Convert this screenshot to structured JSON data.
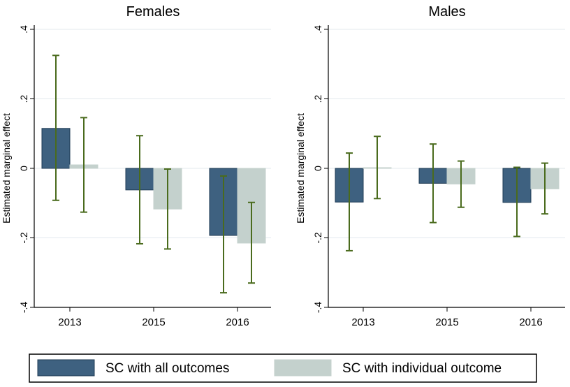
{
  "chart_data": [
    {
      "type": "bar",
      "title": "Females",
      "ylabel": "Estimated marginal effect",
      "xlabel": "",
      "categories": [
        "2013",
        "2015",
        "2016"
      ],
      "ylim": [
        -0.4,
        0.4
      ],
      "yticks": [
        -0.4,
        -0.2,
        0,
        0.2,
        0.4
      ],
      "ytick_labels": [
        "-.4",
        "-.2",
        "0",
        ".2",
        ".4"
      ],
      "grid": true,
      "series": [
        {
          "name": "SC with all outcomes",
          "values": [
            0.115,
            -0.062,
            -0.193
          ],
          "ci_low": [
            -0.092,
            -0.217,
            -0.358
          ],
          "ci_high": [
            0.325,
            0.094,
            -0.022
          ]
        },
        {
          "name": "SC with individual outcome",
          "values": [
            0.01,
            -0.117,
            -0.215
          ],
          "ci_low": [
            -0.126,
            -0.232,
            -0.33
          ],
          "ci_high": [
            0.146,
            -0.002,
            -0.098
          ]
        }
      ]
    },
    {
      "type": "bar",
      "title": "Males",
      "ylabel": "Estimated marginal effect",
      "xlabel": "",
      "categories": [
        "2013",
        "2015",
        "2016"
      ],
      "ylim": [
        -0.4,
        0.4
      ],
      "yticks": [
        -0.4,
        -0.2,
        0,
        0.2,
        0.4
      ],
      "ytick_labels": [
        "-.4",
        "-.2",
        "0",
        ".2",
        ".4"
      ],
      "grid": true,
      "series": [
        {
          "name": "SC with all outcomes",
          "values": [
            -0.097,
            -0.043,
            -0.098
          ],
          "ci_low": [
            -0.237,
            -0.156,
            -0.196
          ],
          "ci_high": [
            0.044,
            0.07,
            0.003
          ]
        },
        {
          "name": "SC with individual outcome",
          "values": [
            0.002,
            -0.045,
            -0.059
          ],
          "ci_low": [
            -0.087,
            -0.112,
            -0.131
          ],
          "ci_high": [
            0.092,
            0.021,
            0.015
          ]
        }
      ]
    }
  ],
  "legend": {
    "placement": "bottom",
    "items": [
      {
        "label": "SC with all outcomes",
        "color": "#3e6180"
      },
      {
        "label": "SC with individual outcome",
        "color": "#c4d1cd"
      }
    ]
  },
  "colors": {
    "series": [
      "#3e6180",
      "#c4d1cd"
    ],
    "bar_outline": [
      "#1f3b54",
      "#c4d1cd"
    ],
    "error_bar": "#4a6b1d",
    "grid": "#e3e9ee"
  }
}
